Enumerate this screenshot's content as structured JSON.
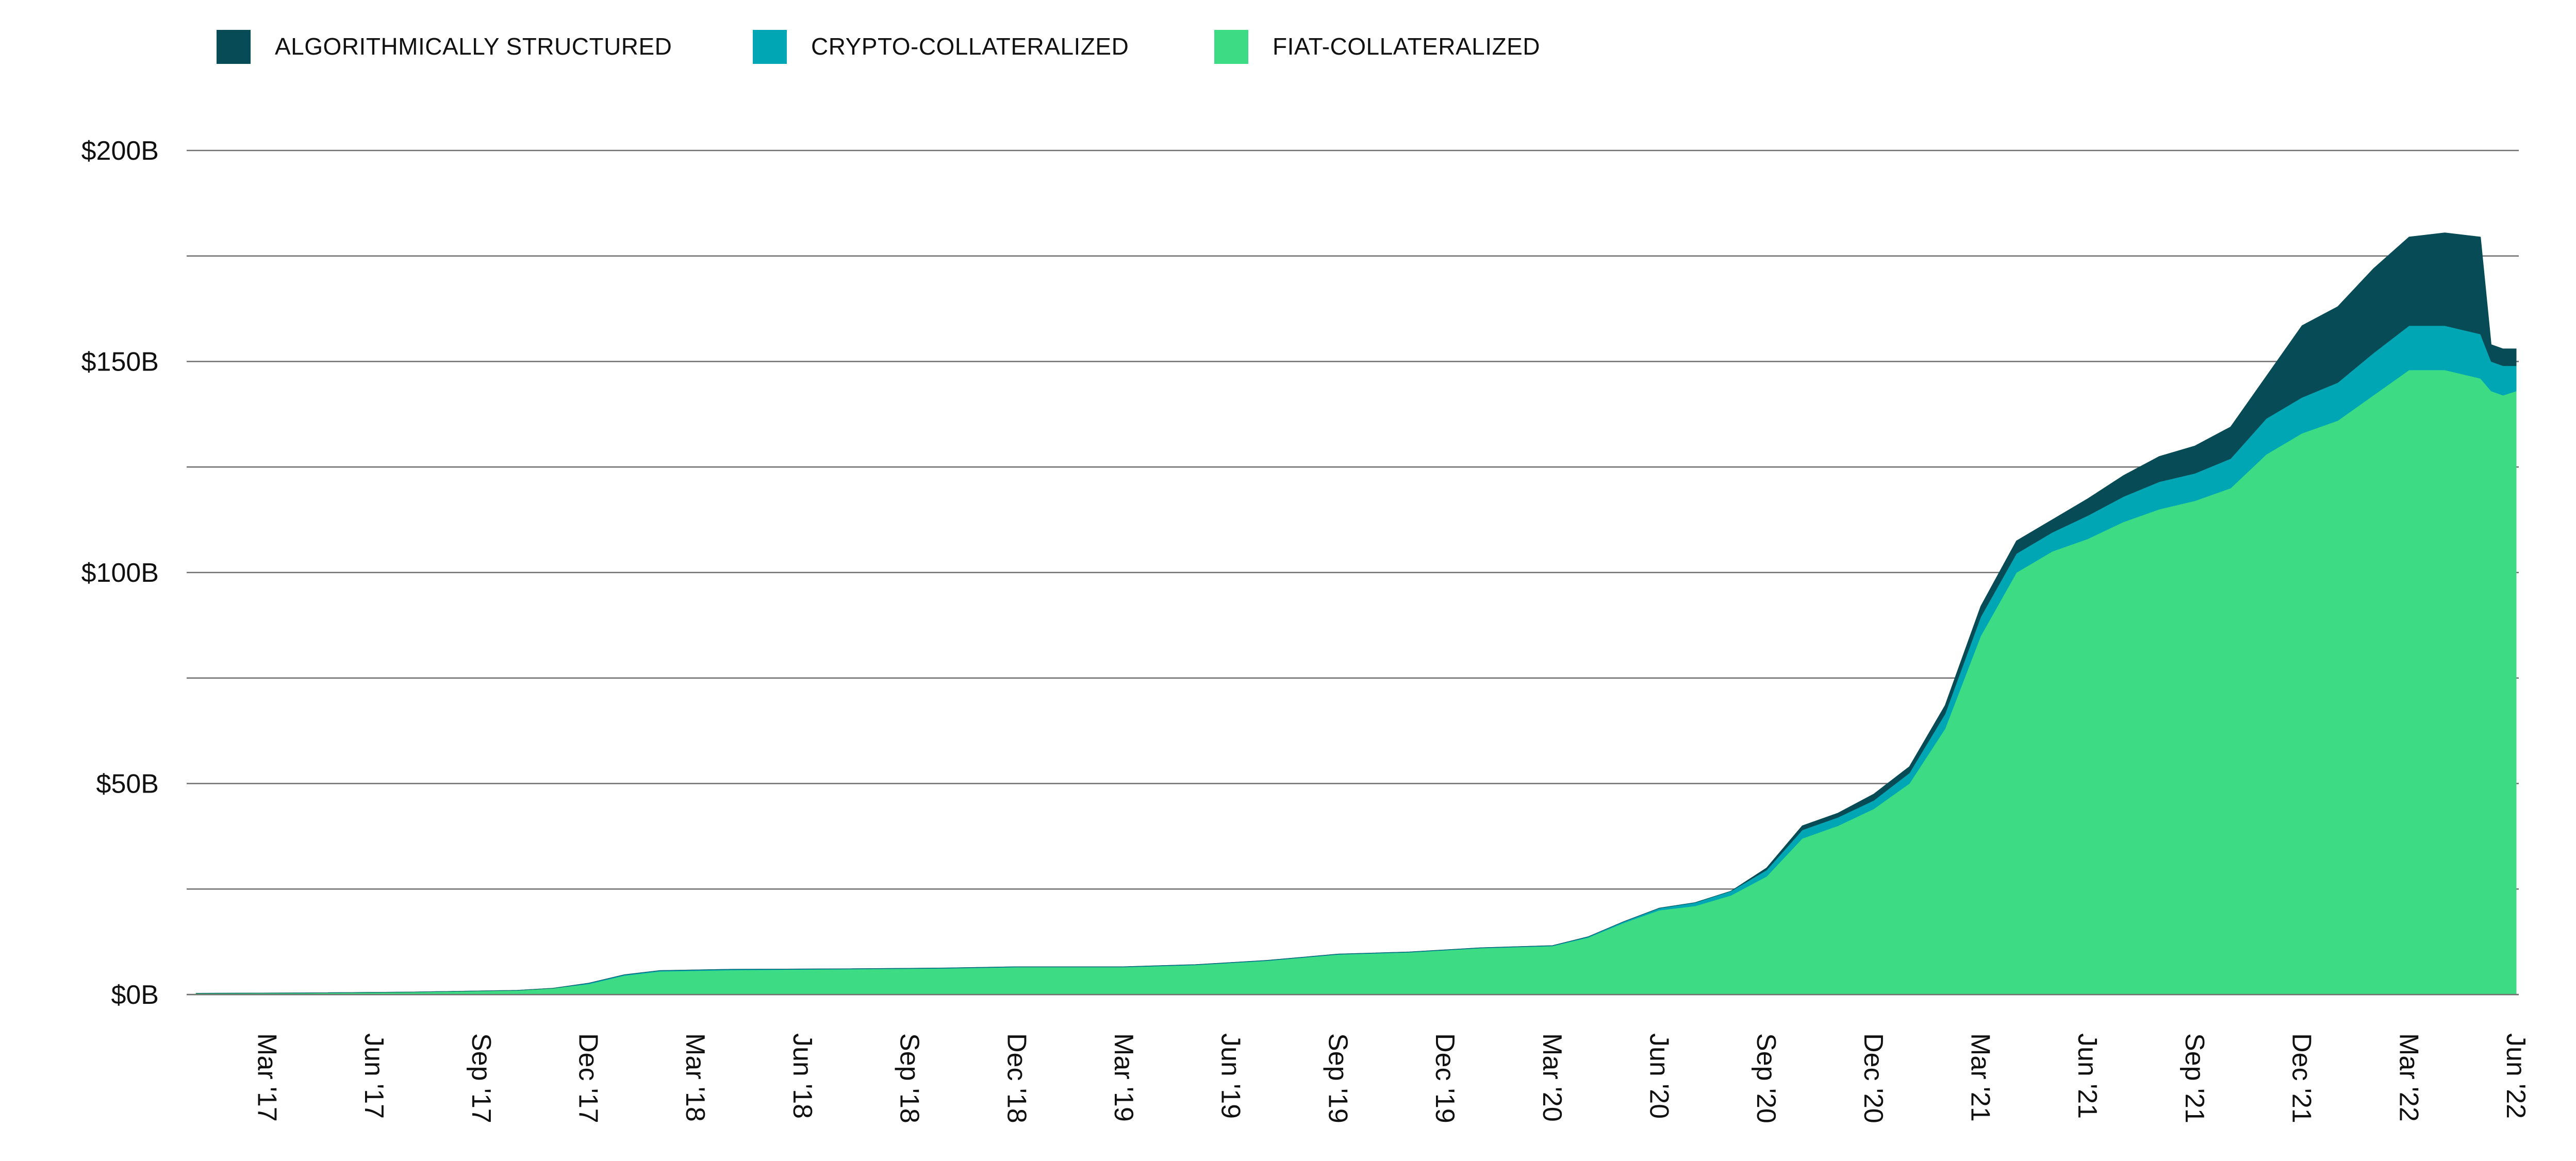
{
  "chart_data": {
    "type": "area",
    "stacked": true,
    "legend_position": "top-left",
    "grid": true,
    "ylim": [
      0,
      200
    ],
    "ytick_labels": [
      "$0B",
      "$50B",
      "$100B",
      "$150B",
      "$200B"
    ],
    "ytick_values": [
      0,
      50,
      100,
      150,
      200
    ],
    "x_range": [
      "2017-01",
      "2022-06"
    ],
    "xtick_labels": [
      "Mar '17",
      "Jun '17",
      "Sep '17",
      "Dec '17",
      "Mar '18",
      "Jun '18",
      "Sep '18",
      "Dec '18",
      "Mar '19",
      "Jun '19",
      "Sep '19",
      "Dec '19",
      "Mar '20",
      "Jun '20",
      "Sep '20",
      "Dec '20",
      "Mar '21",
      "Jun '21",
      "Sep '21",
      "Dec '21",
      "Mar '22",
      "Jun '22"
    ],
    "x": [
      "2017-01",
      "2017-04",
      "2017-07",
      "2017-10",
      "2017-11",
      "2017-12",
      "2018-01",
      "2018-02",
      "2018-04",
      "2018-07",
      "2018-10",
      "2018-12",
      "2019-03",
      "2019-05",
      "2019-07",
      "2019-09",
      "2019-11",
      "2020-01",
      "2020-03",
      "2020-04",
      "2020-05",
      "2020-06",
      "2020-07",
      "2020-08",
      "2020-09",
      "2020-10",
      "2020-11",
      "2020-12",
      "2021-01",
      "2021-02",
      "2021-03",
      "2021-04",
      "2021-05",
      "2021-06",
      "2021-07",
      "2021-08",
      "2021-09",
      "2021-10",
      "2021-11",
      "2021-12",
      "2022-01",
      "2022-02",
      "2022-03",
      "2022-04",
      "2022-05-01",
      "2022-05-10",
      "2022-05-20",
      "2022-06"
    ],
    "series": [
      {
        "name": "FIAT-COLLATERALIZED",
        "color": "#3ddc84",
        "values": [
          0.3,
          0.4,
          0.6,
          1.0,
          1.5,
          2.5,
          4.5,
          5.5,
          5.8,
          6.0,
          6.2,
          6.5,
          6.5,
          7.0,
          8.0,
          9.5,
          10.0,
          11.0,
          11.5,
          13.5,
          17.0,
          20.0,
          21.0,
          23.5,
          28.0,
          37.0,
          40.0,
          44.0,
          50.0,
          63.0,
          85.0,
          100.0,
          105.0,
          108.0,
          112.0,
          115.0,
          117.0,
          120.0,
          128.0,
          133.0,
          136.0,
          142.0,
          148.0,
          148.0,
          146.0,
          143.0,
          142.0,
          143.0
        ]
      },
      {
        "name": "CRYPTO-COLLATERALIZED",
        "color": "#00a6b4",
        "values": [
          0,
          0,
          0,
          0,
          0,
          0.2,
          0.2,
          0.2,
          0.2,
          0.1,
          0.1,
          0.1,
          0.1,
          0.1,
          0.1,
          0.1,
          0.1,
          0.1,
          0.1,
          0.2,
          0.3,
          0.5,
          0.8,
          1.0,
          1.5,
          2.0,
          2.0,
          2.0,
          2.5,
          3.5,
          4.5,
          4.5,
          4.5,
          5.5,
          6.0,
          6.5,
          6.5,
          7.0,
          8.5,
          8.5,
          9.0,
          10.0,
          10.5,
          10.5,
          10.5,
          7.0,
          7.0,
          6.0
        ]
      },
      {
        "name": "ALGORITHMICALLY STRUCTURED",
        "color": "#064b55",
        "values": [
          0,
          0,
          0,
          0,
          0,
          0,
          0,
          0,
          0,
          0,
          0,
          0,
          0,
          0,
          0,
          0,
          0,
          0,
          0,
          0,
          0,
          0,
          0,
          0,
          0.5,
          1.0,
          1.0,
          1.5,
          1.5,
          2.0,
          2.5,
          3.0,
          3.0,
          4.0,
          5.0,
          6.0,
          6.5,
          7.5,
          10.0,
          17.0,
          18.0,
          20.0,
          21.0,
          22.0,
          23.0,
          4.0,
          4.0,
          4.0
        ]
      }
    ]
  }
}
